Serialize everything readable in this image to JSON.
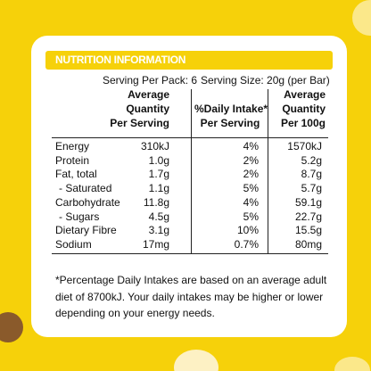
{
  "header": {
    "title": "NUTRITION INFORMATION"
  },
  "serving": {
    "per_pack": "Serving Per Pack: 6",
    "size": "Serving Size: 20g (per Bar)"
  },
  "table": {
    "columns": [
      [
        "Average",
        "Quantity",
        "Per Serving"
      ],
      [
        "%Daily Intake*",
        "Per Serving"
      ],
      [
        "Average",
        "Quantity",
        "Per 100g"
      ]
    ],
    "rows": [
      [
        "Energy",
        "310kJ",
        "4%",
        "1570kJ"
      ],
      [
        "Protein",
        "1.0g",
        "2%",
        "5.2g"
      ],
      [
        "Fat, total",
        "1.7g",
        "2%",
        "8.7g"
      ],
      [
        "- Saturated",
        "1.1g",
        "5%",
        "5.7g"
      ],
      [
        "Carbohydrate",
        "11.8g",
        "4%",
        "59.1g"
      ],
      [
        "- Sugars",
        "4.5g",
        "5%",
        "22.7g"
      ],
      [
        "Dietary Fibre",
        "3.1g",
        "10%",
        "15.5g"
      ],
      [
        "Sodium",
        "17mg",
        "0.7%",
        "80mg"
      ]
    ]
  },
  "footnote": "*Percentage Daily Intakes are based on an average adult diet of 8700kJ. Your daily intakes may be higher or lower depending on your energy needs."
}
